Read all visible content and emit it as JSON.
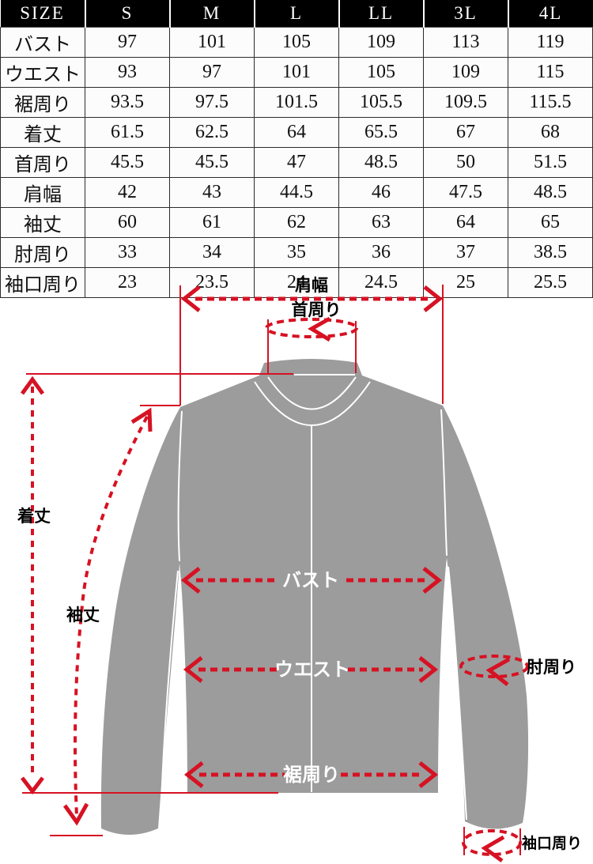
{
  "table": {
    "header": [
      "SIZE",
      "S",
      "M",
      "L",
      "LL",
      "3L",
      "4L"
    ],
    "rows": [
      {
        "label": "バスト",
        "values": [
          "97",
          "101",
          "105",
          "109",
          "113",
          "119"
        ]
      },
      {
        "label": "ウエスト",
        "values": [
          "93",
          "97",
          "101",
          "105",
          "109",
          "115"
        ]
      },
      {
        "label": "裾周り",
        "values": [
          "93.5",
          "97.5",
          "101.5",
          "105.5",
          "109.5",
          "115.5"
        ]
      },
      {
        "label": "着丈",
        "values": [
          "61.5",
          "62.5",
          "64",
          "65.5",
          "67",
          "68"
        ]
      },
      {
        "label": "首周り",
        "values": [
          "45.5",
          "45.5",
          "47",
          "48.5",
          "50",
          "51.5"
        ]
      },
      {
        "label": "肩幅",
        "values": [
          "42",
          "43",
          "44.5",
          "46",
          "47.5",
          "48.5"
        ]
      },
      {
        "label": "袖丈",
        "values": [
          "60",
          "61",
          "62",
          "63",
          "64",
          "65"
        ]
      },
      {
        "label": "肘周り",
        "values": [
          "33",
          "34",
          "35",
          "36",
          "37",
          "38.5"
        ]
      },
      {
        "label": "袖口周り",
        "values": [
          "23",
          "23.5",
          "24",
          "24.5",
          "25",
          "25.5"
        ]
      }
    ]
  },
  "diagram": {
    "labels": {
      "shoulder_width": "肩幅",
      "neck": "首周り",
      "body_length": "着丈",
      "sleeve_length": "袖丈",
      "bust": "バスト",
      "waist": "ウエスト",
      "hem": "裾周り",
      "elbow": "肘周り",
      "cuff": "袖口周り"
    }
  },
  "colors": {
    "accent_red": "#d61223",
    "jacket_gray": "#9c9c9c",
    "header_bg": "#000000",
    "header_text": "#ffffff"
  }
}
